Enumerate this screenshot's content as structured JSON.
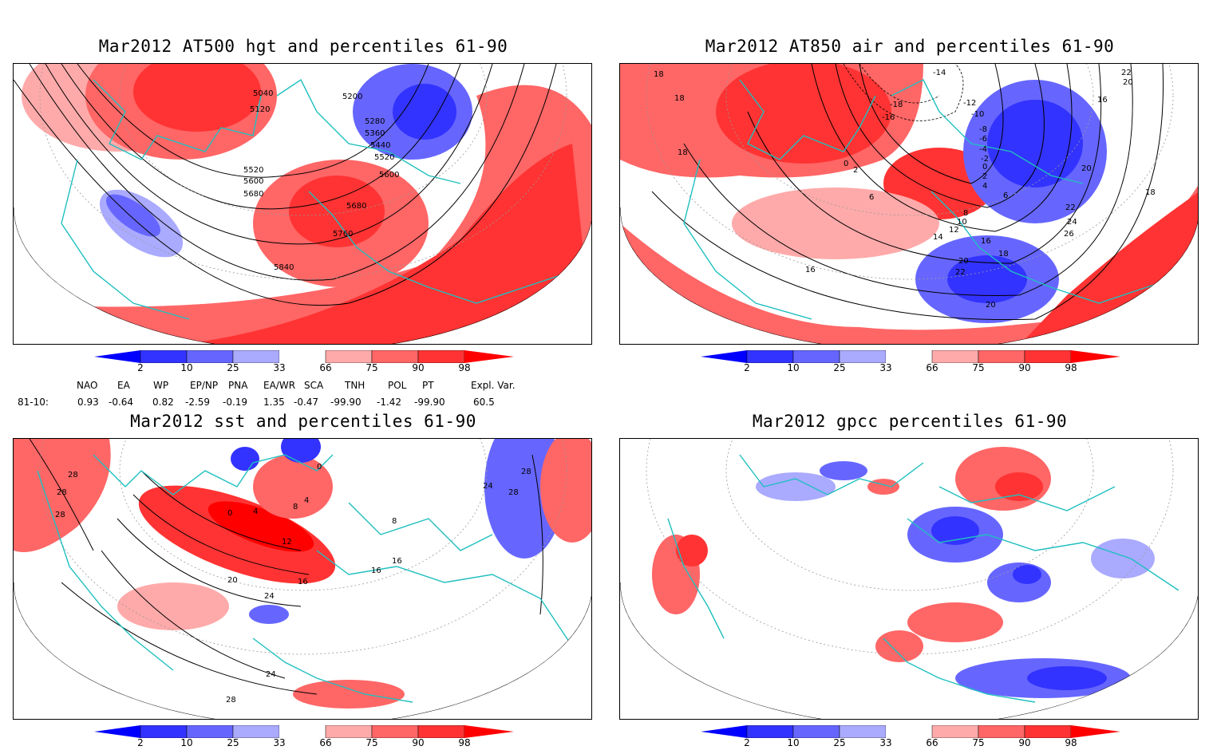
{
  "panels": {
    "p1": {
      "title": "Mar2012 AT500 hgt and percentiles 61-90",
      "contours": [
        "5040",
        "5120",
        "5200",
        "5280",
        "5360",
        "5440",
        "5520",
        "5600",
        "5680",
        "5760",
        "5840",
        "5520",
        "5600",
        "5680"
      ]
    },
    "p2": {
      "title": "Mar2012 AT850 air and percentiles 61-90",
      "contours": [
        "-14",
        "-12",
        "-10",
        "-8",
        "-6",
        "-4",
        "-2",
        "0",
        "2",
        "4",
        "6",
        "8",
        "10",
        "12",
        "14",
        "16",
        "18",
        "20",
        "22",
        "24",
        "26",
        "18",
        "18",
        "18",
        "20",
        "22",
        "16",
        "6",
        "2",
        "0",
        "20",
        "22",
        "-16",
        "-18",
        "16",
        "20",
        "18"
      ]
    },
    "p3": {
      "title": "Mar2012 sst and percentiles 61-90",
      "contours": [
        "0",
        "4",
        "8",
        "12",
        "16",
        "20",
        "24",
        "28",
        "28",
        "28",
        "28",
        "24",
        "28",
        "16",
        "16",
        "8",
        "4",
        "0",
        "24",
        "28"
      ]
    },
    "p4": {
      "title": "Mar2012 gpcc percentiles 61-90"
    }
  },
  "colorbar": {
    "labels": [
      "2",
      "10",
      "25",
      "33",
      "66",
      "75",
      "90",
      "98"
    ],
    "colors": {
      "extreme_low": "#0000ff",
      "low_2_10": "#3333ff",
      "low_10_25": "#6666ff",
      "low_25_33": "#aaaaff",
      "neutral": "#ffffff",
      "high_66_75": "#ffaaaa",
      "high_75_90": "#ff6666",
      "high_90_98": "#ff3333",
      "extreme_high": "#ff0000"
    }
  },
  "indices": {
    "header": [
      "NAO",
      "EA",
      "WP",
      "EP/NP",
      "PNA",
      "EA/WR",
      "SCA",
      "TNH",
      "POL",
      "PT",
      "Expl. Var."
    ],
    "row_label": "81-10:",
    "values": [
      "0.93",
      "-0.64",
      "0.82",
      "-2.59",
      "-0.19",
      "1.35",
      "-0.47",
      "-99.90",
      "-1.42",
      "-99.90",
      "60.5"
    ]
  },
  "map_colors": {
    "coast": "#1fbfbf",
    "contour": "#000000",
    "grid": "#999999"
  }
}
